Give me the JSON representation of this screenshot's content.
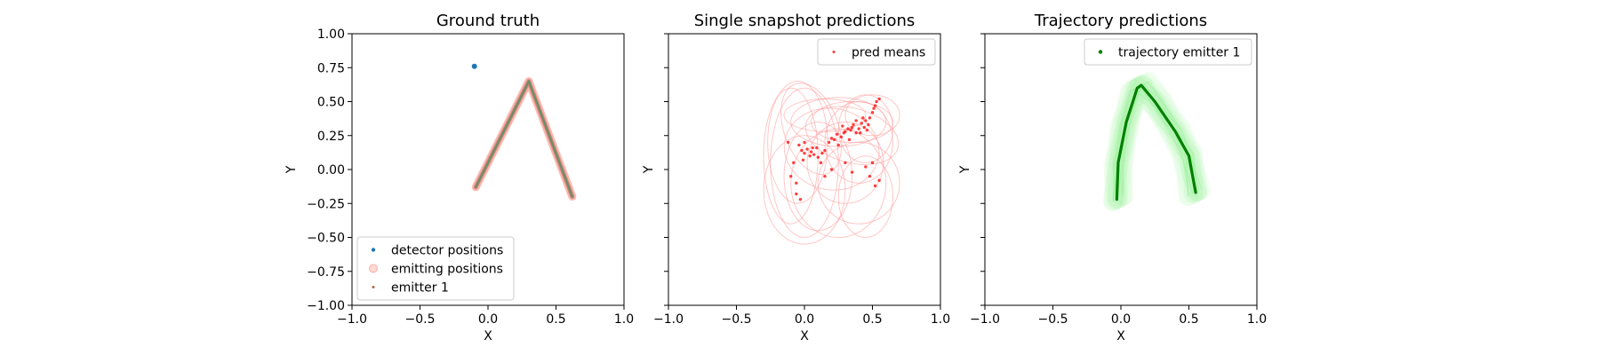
{
  "chart_data": [
    {
      "type": "scatter",
      "title": "Ground truth",
      "xlabel": "X",
      "ylabel": "Y",
      "xlim": [
        -1.0,
        1.0
      ],
      "ylim": [
        -1.0,
        1.0
      ],
      "xticks": [
        "−1.0",
        "−0.5",
        "0.0",
        "0.5",
        "1.0"
      ],
      "yticks": [
        "1.00",
        "0.75",
        "0.50",
        "0.25",
        "0.00",
        "−0.25",
        "−0.50",
        "−0.75",
        "−1.00"
      ],
      "grid": false,
      "legend_position": "lower-left",
      "series": [
        {
          "name": "detector positions",
          "color": "#1f77b4",
          "points": [
            [
              -0.1,
              0.76
            ]
          ]
        },
        {
          "name": "emitting positions",
          "color": "#fa8072",
          "path": [
            [
              -0.09,
              -0.13
            ],
            [
              0.3,
              0.65
            ],
            [
              0.62,
              -0.2
            ]
          ]
        },
        {
          "name": "emitter 1",
          "color": "#6b8e6b",
          "path": [
            [
              -0.09,
              -0.13
            ],
            [
              0.3,
              0.65
            ],
            [
              0.62,
              -0.2
            ]
          ]
        }
      ]
    },
    {
      "type": "scatter",
      "title": "Single snapshot predictions",
      "xlabel": "X",
      "ylabel": "Y",
      "xlim": [
        -1.0,
        1.0
      ],
      "ylim": [
        -1.0,
        1.0
      ],
      "xticks": [
        "−1.0",
        "−0.5",
        "0.0",
        "0.5",
        "1.0"
      ],
      "grid": false,
      "legend_position": "upper-right",
      "series": [
        {
          "name": "pred means",
          "color": "#ff0000",
          "points": [
            [
              -0.12,
              0.2
            ],
            [
              -0.08,
              0.05
            ],
            [
              -0.1,
              -0.05
            ],
            [
              -0.06,
              -0.1
            ],
            [
              -0.04,
              0.18
            ],
            [
              -0.02,
              0.14
            ],
            [
              0.0,
              0.12
            ],
            [
              0.02,
              0.15
            ],
            [
              0.04,
              0.1
            ],
            [
              0.05,
              0.13
            ],
            [
              0.07,
              0.11
            ],
            [
              0.09,
              0.16
            ],
            [
              0.1,
              0.09
            ],
            [
              0.13,
              0.12
            ],
            [
              0.15,
              0.14
            ],
            [
              0.18,
              0.2
            ],
            [
              0.2,
              0.23
            ],
            [
              0.22,
              0.22
            ],
            [
              0.24,
              0.26
            ],
            [
              0.27,
              0.24
            ],
            [
              0.3,
              0.28
            ],
            [
              0.32,
              0.3
            ],
            [
              0.34,
              0.29
            ],
            [
              0.36,
              0.33
            ],
            [
              0.38,
              0.27
            ],
            [
              0.4,
              0.3
            ],
            [
              0.42,
              0.34
            ],
            [
              0.44,
              0.31
            ],
            [
              0.45,
              0.36
            ],
            [
              0.46,
              0.29
            ],
            [
              0.48,
              0.38
            ],
            [
              0.5,
              0.42
            ],
            [
              0.51,
              0.45
            ],
            [
              0.52,
              0.47
            ],
            [
              0.53,
              0.5
            ],
            [
              0.55,
              0.52
            ],
            [
              0.47,
              0.33
            ],
            [
              0.41,
              0.27
            ],
            [
              0.35,
              0.31
            ],
            [
              0.29,
              0.27
            ],
            [
              0.12,
              0.05
            ],
            [
              0.2,
              0.0
            ],
            [
              0.3,
              0.05
            ],
            [
              0.35,
              -0.02
            ],
            [
              0.45,
              0.02
            ],
            [
              0.5,
              0.05
            ],
            [
              0.48,
              -0.05
            ],
            [
              0.55,
              -0.08
            ],
            [
              0.52,
              -0.12
            ],
            [
              -0.06,
              -0.18
            ],
            [
              -0.03,
              -0.22
            ],
            [
              0.25,
              0.18
            ],
            [
              0.33,
              0.22
            ],
            [
              0.38,
              0.36
            ],
            [
              0.43,
              0.38
            ],
            [
              0.28,
              0.32
            ],
            [
              0.0,
              0.2
            ],
            [
              0.06,
              0.16
            ],
            [
              -0.01,
              0.07
            ],
            [
              0.15,
              -0.05
            ]
          ],
          "ellipses": [
            [
              -0.05,
              0.2,
              0.22,
              0.45,
              0
            ],
            [
              0.0,
              0.05,
              0.25,
              0.55,
              0
            ],
            [
              0.05,
              0.3,
              0.2,
              0.35,
              -20
            ],
            [
              0.1,
              -0.05,
              0.25,
              0.4,
              0
            ],
            [
              0.2,
              0.15,
              0.35,
              0.3,
              10
            ],
            [
              0.25,
              0.35,
              0.35,
              0.18,
              0
            ],
            [
              0.35,
              0.35,
              0.3,
              0.15,
              0
            ],
            [
              0.4,
              0.2,
              0.25,
              0.3,
              0
            ],
            [
              0.45,
              0.3,
              0.2,
              0.25,
              0
            ],
            [
              0.5,
              0.4,
              0.2,
              0.15,
              0
            ],
            [
              0.3,
              0.05,
              0.28,
              0.3,
              0
            ],
            [
              0.4,
              -0.1,
              0.3,
              0.3,
              0
            ],
            [
              0.0,
              -0.15,
              0.3,
              0.4,
              0
            ],
            [
              0.15,
              0.4,
              0.3,
              0.12,
              0
            ],
            [
              0.35,
              0.25,
              0.35,
              0.2,
              15
            ],
            [
              0.45,
              -0.2,
              0.2,
              0.3,
              0
            ],
            [
              -0.1,
              0.1,
              0.2,
              0.5,
              0
            ],
            [
              0.25,
              -0.1,
              0.35,
              0.4,
              0
            ]
          ]
        }
      ]
    },
    {
      "type": "scatter",
      "title": "Trajectory predictions",
      "xlabel": "X",
      "ylabel": "Y",
      "xlim": [
        -1.0,
        1.0
      ],
      "ylim": [
        -1.0,
        1.0
      ],
      "xticks": [
        "−1.0",
        "−0.5",
        "0.0",
        "0.5",
        "1.0"
      ],
      "grid": false,
      "legend_position": "upper-right",
      "series": [
        {
          "name": "trajectory emitter 1",
          "color": "#008000",
          "path": [
            [
              -0.03,
              -0.22
            ],
            [
              -0.02,
              0.05
            ],
            [
              0.04,
              0.35
            ],
            [
              0.12,
              0.6
            ],
            [
              0.15,
              0.62
            ],
            [
              0.25,
              0.5
            ],
            [
              0.4,
              0.28
            ],
            [
              0.5,
              0.1
            ],
            [
              0.55,
              -0.17
            ]
          ],
          "band_color": "#90ee90"
        }
      ]
    }
  ]
}
